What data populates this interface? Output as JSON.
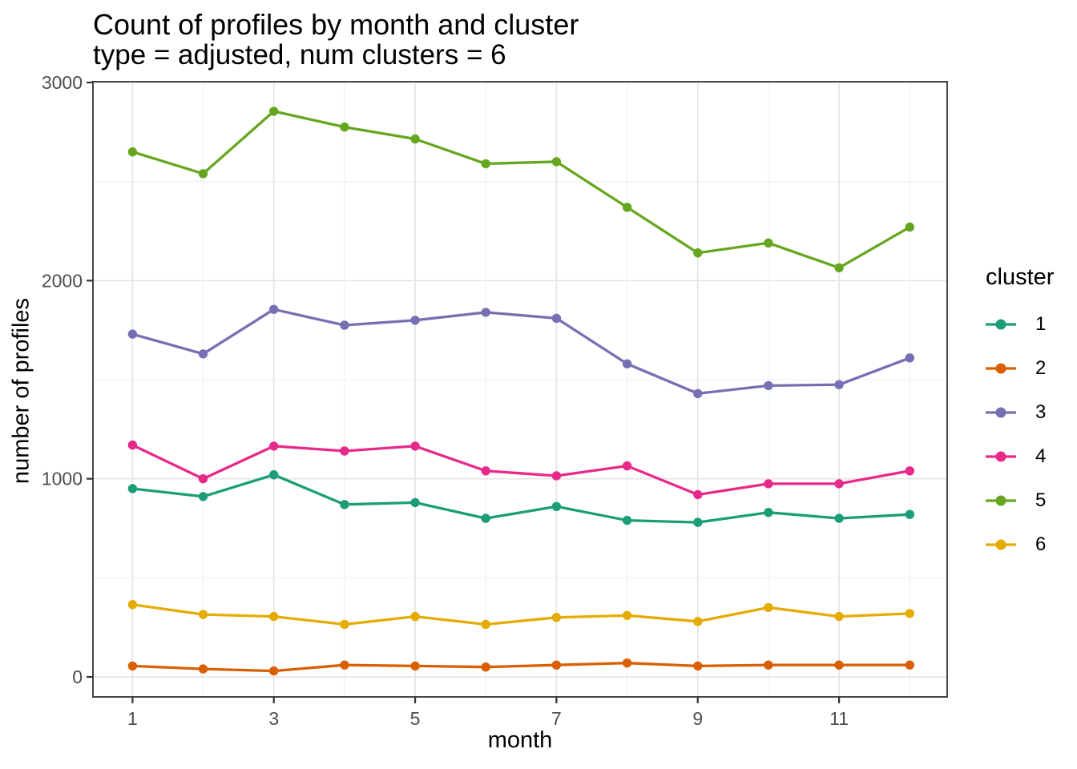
{
  "chart_data": {
    "type": "line",
    "title": "Count of profiles by month and cluster",
    "subtitle": "type = adjusted, num clusters = 6",
    "xlabel": "month",
    "ylabel": "number of profiles",
    "legend_title": "cluster",
    "legend_position": "right",
    "grid": true,
    "x": [
      1,
      2,
      3,
      4,
      5,
      6,
      7,
      8,
      9,
      10,
      11,
      12
    ],
    "x_tick_labels": [
      1,
      3,
      5,
      7,
      9,
      11
    ],
    "x_minor_gridlines": [
      2,
      4,
      6,
      8,
      10,
      12
    ],
    "y_tick_labels": [
      0,
      1000,
      2000,
      3000
    ],
    "y_minor_gridlines": [
      500,
      1500,
      2500
    ],
    "xlim": [
      0.44,
      12.53
    ],
    "ylim": [
      -101,
      3004
    ],
    "series": [
      {
        "name": "1",
        "color": "#1B9E77",
        "values": [
          950,
          910,
          1020,
          870,
          880,
          800,
          860,
          790,
          780,
          830,
          800,
          820
        ]
      },
      {
        "name": "2",
        "color": "#D95F02",
        "values": [
          55,
          40,
          30,
          60,
          55,
          50,
          60,
          70,
          55,
          60,
          60,
          60
        ]
      },
      {
        "name": "3",
        "color": "#7570B3",
        "values": [
          1730,
          1630,
          1855,
          1775,
          1800,
          1840,
          1810,
          1580,
          1430,
          1470,
          1475,
          1610
        ]
      },
      {
        "name": "4",
        "color": "#E7298A",
        "values": [
          1170,
          1000,
          1165,
          1140,
          1165,
          1040,
          1015,
          1065,
          920,
          975,
          975,
          1040
        ]
      },
      {
        "name": "5",
        "color": "#66A61E",
        "values": [
          2650,
          2540,
          2855,
          2775,
          2715,
          2590,
          2600,
          2370,
          2140,
          2190,
          2065,
          2270
        ]
      },
      {
        "name": "6",
        "color": "#E6AB02",
        "values": [
          365,
          315,
          305,
          265,
          305,
          265,
          300,
          310,
          280,
          350,
          305,
          320
        ]
      }
    ],
    "style": {
      "panel_border_color": "#464646",
      "major_grid_color": "#e5e5e5",
      "minor_grid_color": "#f0f0f0",
      "tick_color": "#333333",
      "tick_label_color": "#4d4d4d"
    }
  }
}
